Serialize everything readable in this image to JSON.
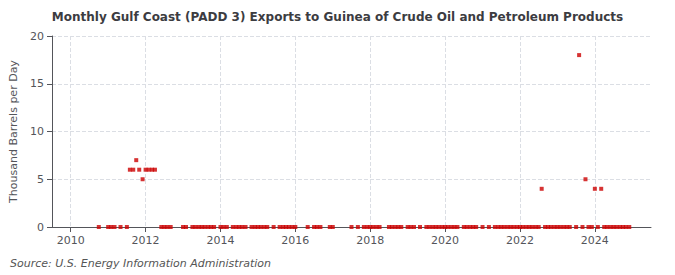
{
  "chart_data": {
    "type": "scatter",
    "title": "Monthly Gulf Coast (PADD 3) Exports to Guinea of Crude Oil and Petroleum Products",
    "ylabel": "Thousand Barrels per Day",
    "annotations": [
      "Source: U.S. Energy Information Administration"
    ],
    "color": "#cc0000",
    "marker": "square",
    "grid": true,
    "xlim": [
      2009.5,
      2025.5
    ],
    "xticks": [
      2010,
      2012,
      2014,
      2016,
      2018,
      2020,
      2022,
      2024
    ],
    "ylim": [
      0,
      20
    ],
    "yticks": [
      0,
      5,
      10,
      15,
      20
    ],
    "x": [
      2010.75,
      2011.0,
      2011.08,
      2011.17,
      2011.33,
      2011.5,
      2011.58,
      2011.67,
      2011.75,
      2011.83,
      2011.92,
      2012.0,
      2012.08,
      2012.17,
      2012.25,
      2012.42,
      2012.5,
      2012.58,
      2012.67,
      2013.0,
      2013.08,
      2013.25,
      2013.33,
      2013.42,
      2013.5,
      2013.58,
      2013.67,
      2013.75,
      2013.83,
      2014.0,
      2014.08,
      2014.17,
      2014.33,
      2014.42,
      2014.5,
      2014.58,
      2014.67,
      2014.83,
      2014.92,
      2015.0,
      2015.08,
      2015.17,
      2015.25,
      2015.42,
      2015.58,
      2015.67,
      2015.75,
      2015.83,
      2015.92,
      2016.0,
      2016.33,
      2016.5,
      2016.58,
      2016.67,
      2016.92,
      2017.0,
      2017.5,
      2017.67,
      2017.83,
      2017.92,
      2018.0,
      2018.08,
      2018.17,
      2018.25,
      2018.5,
      2018.58,
      2018.67,
      2018.75,
      2018.83,
      2019.0,
      2019.08,
      2019.17,
      2019.33,
      2019.5,
      2019.58,
      2019.67,
      2019.75,
      2019.83,
      2019.92,
      2020.0,
      2020.08,
      2020.17,
      2020.25,
      2020.33,
      2020.5,
      2020.58,
      2020.67,
      2020.75,
      2020.83,
      2021.0,
      2021.17,
      2021.33,
      2021.42,
      2021.5,
      2021.58,
      2021.67,
      2021.75,
      2021.83,
      2021.92,
      2022.0,
      2022.08,
      2022.17,
      2022.25,
      2022.33,
      2022.42,
      2022.5,
      2022.58,
      2022.67,
      2022.75,
      2022.83,
      2022.92,
      2023.0,
      2023.08,
      2023.17,
      2023.25,
      2023.33,
      2023.5,
      2023.58,
      2023.67,
      2023.75,
      2023.83,
      2023.92,
      2024.0,
      2024.08,
      2024.17,
      2024.25,
      2024.33,
      2024.42,
      2024.5,
      2024.58,
      2024.67,
      2024.75,
      2024.83,
      2024.92
    ],
    "values": [
      0.0,
      0.0,
      0.0,
      0.0,
      0.0,
      0.0,
      6.0,
      6.0,
      7.0,
      6.0,
      5.0,
      6.0,
      6.0,
      6.0,
      6.0,
      0.0,
      0.0,
      0.0,
      0.0,
      0.0,
      0.0,
      0.0,
      0.0,
      0.0,
      0.0,
      0.0,
      0.0,
      0.0,
      0.0,
      0.0,
      0.0,
      0.0,
      0.0,
      0.0,
      0.0,
      0.0,
      0.0,
      0.0,
      0.0,
      0.0,
      0.0,
      0.0,
      0.0,
      0.0,
      0.0,
      0.0,
      0.0,
      0.0,
      0.0,
      0.0,
      0.0,
      0.0,
      0.0,
      0.0,
      0.0,
      0.0,
      0.0,
      0.0,
      0.0,
      0.0,
      0.0,
      0.0,
      0.0,
      0.0,
      0.0,
      0.0,
      0.0,
      0.0,
      0.0,
      0.0,
      0.0,
      0.0,
      0.0,
      0.0,
      0.0,
      0.0,
      0.0,
      0.0,
      0.0,
      0.0,
      0.0,
      0.0,
      0.0,
      0.0,
      0.0,
      0.0,
      0.0,
      0.0,
      0.0,
      0.0,
      0.0,
      0.0,
      0.0,
      0.0,
      0.0,
      0.0,
      0.0,
      0.0,
      0.0,
      0.0,
      0.0,
      0.0,
      0.0,
      0.0,
      0.0,
      0.0,
      4.0,
      0.0,
      0.0,
      0.0,
      0.0,
      0.0,
      0.0,
      0.0,
      0.0,
      0.0,
      0.0,
      18.0,
      0.0,
      5.0,
      0.0,
      0.0,
      4.0,
      0.0,
      4.0,
      0.0,
      0.0,
      0.0,
      0.0,
      0.0,
      0.0,
      0.0,
      0.0,
      0.0
    ]
  }
}
